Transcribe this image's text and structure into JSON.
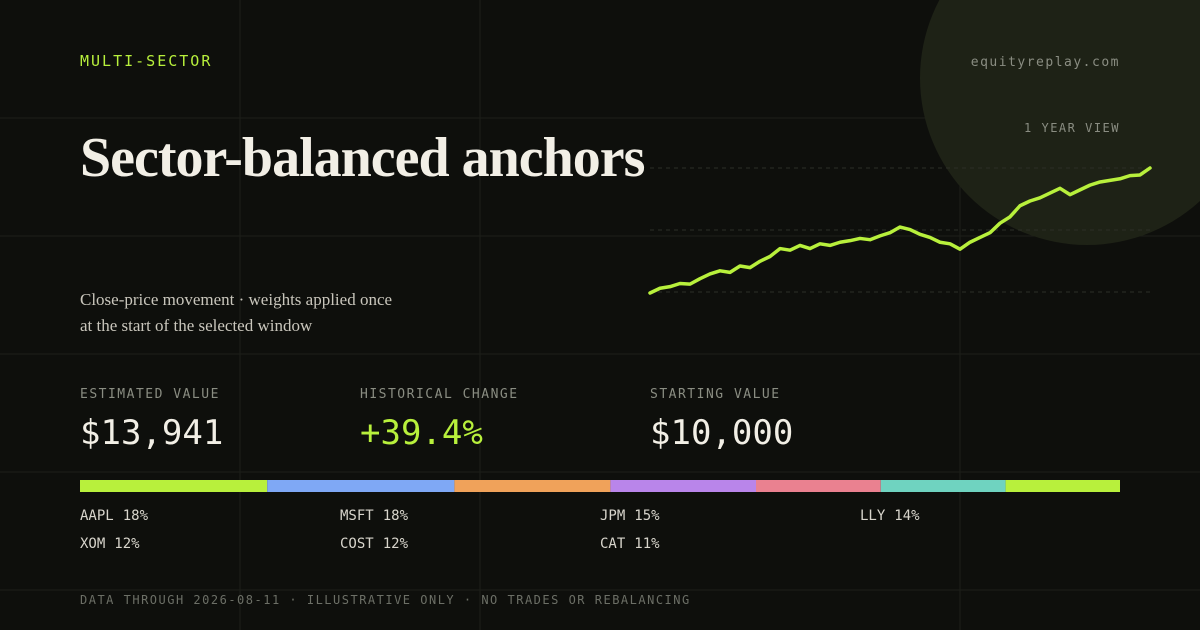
{
  "header": {
    "kicker": "MULTI-SECTOR",
    "site": "equityreplay.com",
    "title": "Sector-balanced anchors",
    "subtitle_lines": [
      "Close-price movement · weights applied once",
      "at the start of the selected window"
    ]
  },
  "sparkline": {
    "label": "1 YEAR VIEW",
    "color": "#b8f03c",
    "values": [
      100,
      101.5,
      102,
      103,
      102.8,
      104.5,
      106,
      107,
      106.5,
      108.5,
      108,
      110,
      111.5,
      114,
      113.5,
      115,
      114,
      115.5,
      115,
      116,
      116.5,
      117.2,
      116.8,
      118,
      119,
      120.8,
      120,
      118.5,
      117.5,
      116,
      115.5,
      113.8,
      116,
      117.5,
      119,
      122,
      124,
      127.5,
      129,
      130,
      131.5,
      133,
      131,
      132.5,
      134,
      135,
      135.5,
      136,
      137,
      137.2,
      139.4
    ]
  },
  "stats": [
    {
      "label": "ESTIMATED VALUE",
      "value": "$13,941"
    },
    {
      "label": "HISTORICAL CHANGE",
      "value": "+39.4%"
    },
    {
      "label": "STARTING VALUE",
      "value": "$10,000"
    }
  ],
  "holdings": {
    "tickers": [
      "AAPL",
      "MSFT",
      "JPM",
      "LLY",
      "XOM",
      "COST",
      "CAT"
    ],
    "weights": [
      18,
      18,
      15,
      14,
      12,
      12,
      11
    ],
    "weight_labels": [
      "18%",
      "18%",
      "15%",
      "14%",
      "12%",
      "12%",
      "11%"
    ],
    "colors": [
      "#b8f03c",
      "#7fa8f5",
      "#f0a25a",
      "#b985ea",
      "#ea8190",
      "#6fd3c0",
      "#b8f03c"
    ]
  },
  "footer": "DATA THROUGH 2026-08-11 · ILLUSTRATIVE ONLY · NO TRADES OR REBALANCING"
}
